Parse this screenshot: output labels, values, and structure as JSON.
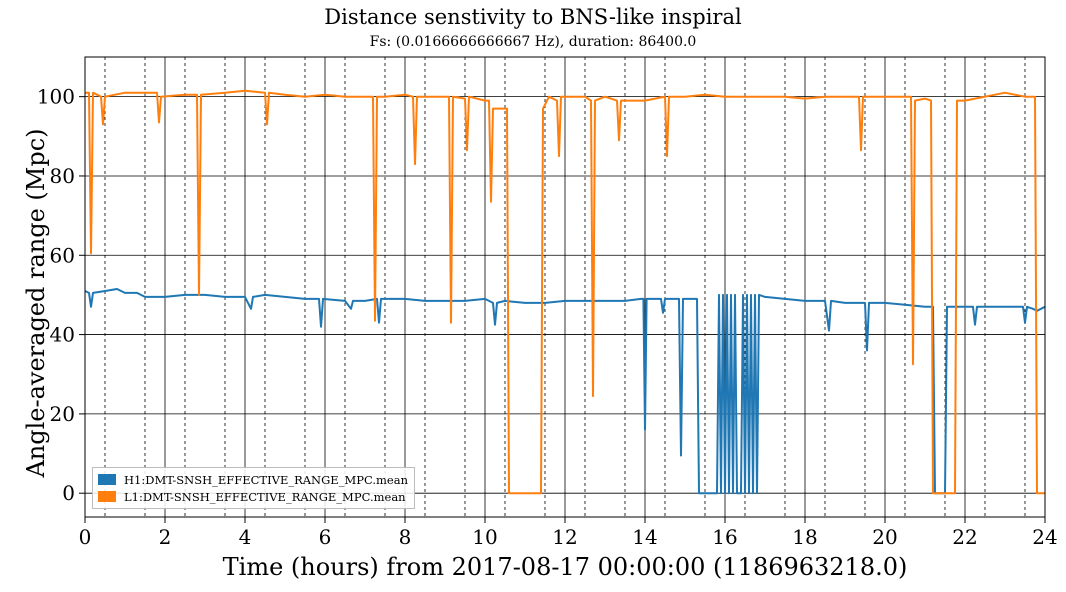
{
  "chart_data": {
    "type": "line",
    "title": "Distance senstivity to BNS-like inspiral",
    "subtitle": "Fs: (0.0166666666667 Hz), duration: 86400.0",
    "xlabel": "Time (hours) from 2017-08-17 00:00:00 (1186963218.0)",
    "ylabel": "Angle-averaged range (Mpc)",
    "xlim": [
      0,
      24
    ],
    "ylim": [
      -6,
      110
    ],
    "x_ticks": [
      0,
      2,
      4,
      6,
      8,
      10,
      12,
      14,
      16,
      18,
      20,
      22,
      24
    ],
    "y_ticks": [
      0,
      20,
      40,
      60,
      80,
      100
    ],
    "grid": "major solid, minor dashed (x every 0.5 h)",
    "legend": "lower-left",
    "series": [
      {
        "name": "H1:DMT-SNSH_EFFECTIVE_RANGE_MPC.mean",
        "color": "#1f77b4",
        "points": [
          [
            0.0,
            51
          ],
          [
            0.1,
            50.5
          ],
          [
            0.15,
            47
          ],
          [
            0.2,
            50.5
          ],
          [
            0.5,
            51
          ],
          [
            0.8,
            51.5
          ],
          [
            1.0,
            50.5
          ],
          [
            1.3,
            50.5
          ],
          [
            1.5,
            49.5
          ],
          [
            2.0,
            49.5
          ],
          [
            2.5,
            50
          ],
          [
            3.0,
            50
          ],
          [
            3.5,
            49.5
          ],
          [
            4.0,
            49.5
          ],
          [
            4.15,
            46.5
          ],
          [
            4.2,
            49.5
          ],
          [
            4.5,
            50
          ],
          [
            5.0,
            49.5
          ],
          [
            5.5,
            49
          ],
          [
            5.85,
            49
          ],
          [
            5.9,
            42
          ],
          [
            5.95,
            49
          ],
          [
            6.5,
            48.5
          ],
          [
            6.65,
            46.5
          ],
          [
            6.7,
            48.5
          ],
          [
            7.0,
            48.5
          ],
          [
            7.3,
            49
          ],
          [
            7.35,
            43
          ],
          [
            7.4,
            49
          ],
          [
            7.5,
            49
          ],
          [
            8.0,
            49
          ],
          [
            8.5,
            48.5
          ],
          [
            9.0,
            48.5
          ],
          [
            9.5,
            48.5
          ],
          [
            10.0,
            49
          ],
          [
            10.2,
            48
          ],
          [
            10.25,
            42.5
          ],
          [
            10.3,
            48
          ],
          [
            10.5,
            48.5
          ],
          [
            11.0,
            48
          ],
          [
            11.5,
            48
          ],
          [
            12.0,
            48.5
          ],
          [
            12.5,
            48.5
          ],
          [
            13.0,
            48.5
          ],
          [
            13.5,
            48.5
          ],
          [
            13.9,
            49
          ],
          [
            13.96,
            49
          ],
          [
            14.0,
            16
          ],
          [
            14.04,
            49
          ],
          [
            14.4,
            49
          ],
          [
            14.45,
            45.5
          ],
          [
            14.5,
            49
          ],
          [
            14.85,
            49
          ],
          [
            14.9,
            9.5
          ],
          [
            14.95,
            49
          ],
          [
            15.3,
            49
          ],
          [
            15.35,
            0
          ],
          [
            15.8,
            0
          ],
          [
            15.85,
            50
          ],
          [
            15.9,
            0
          ],
          [
            15.95,
            50
          ],
          [
            16.0,
            0
          ],
          [
            16.05,
            50
          ],
          [
            16.1,
            0
          ],
          [
            16.15,
            50
          ],
          [
            16.2,
            0
          ],
          [
            16.25,
            50
          ],
          [
            16.3,
            0
          ],
          [
            16.4,
            0
          ],
          [
            16.45,
            50
          ],
          [
            16.5,
            0
          ],
          [
            16.55,
            50
          ],
          [
            16.6,
            0
          ],
          [
            16.65,
            50
          ],
          [
            16.7,
            0
          ],
          [
            16.75,
            50
          ],
          [
            16.8,
            0
          ],
          [
            16.85,
            50
          ],
          [
            17.0,
            49.5
          ],
          [
            17.5,
            49
          ],
          [
            18.0,
            48.5
          ],
          [
            18.5,
            48.5
          ],
          [
            18.6,
            41
          ],
          [
            18.65,
            48.5
          ],
          [
            19.0,
            48
          ],
          [
            19.5,
            48
          ],
          [
            19.55,
            36
          ],
          [
            19.6,
            48
          ],
          [
            20.0,
            48
          ],
          [
            20.5,
            47.5
          ],
          [
            21.0,
            47
          ],
          [
            21.2,
            47
          ],
          [
            21.25,
            0
          ],
          [
            21.5,
            0
          ],
          [
            21.55,
            47
          ],
          [
            22.0,
            47
          ],
          [
            22.2,
            47
          ],
          [
            22.25,
            42.5
          ],
          [
            22.3,
            47
          ],
          [
            23.0,
            47
          ],
          [
            23.45,
            47
          ],
          [
            23.5,
            43
          ],
          [
            23.55,
            47
          ],
          [
            23.7,
            46.5
          ],
          [
            23.8,
            46
          ],
          [
            24.0,
            47
          ]
        ]
      },
      {
        "name": "L1:DMT-SNSH_EFFECTIVE_RANGE_MPC.mean",
        "color": "#ff7f0e",
        "points": [
          [
            0.0,
            101
          ],
          [
            0.1,
            101
          ],
          [
            0.15,
            60.5
          ],
          [
            0.2,
            101
          ],
          [
            0.4,
            100
          ],
          [
            0.45,
            93
          ],
          [
            0.5,
            100
          ],
          [
            1.0,
            101
          ],
          [
            1.5,
            101
          ],
          [
            1.8,
            101
          ],
          [
            1.85,
            93.5
          ],
          [
            1.9,
            100
          ],
          [
            2.5,
            100.5
          ],
          [
            2.8,
            100.5
          ],
          [
            2.85,
            50
          ],
          [
            2.9,
            100.5
          ],
          [
            3.5,
            101
          ],
          [
            4.0,
            101.5
          ],
          [
            4.5,
            101
          ],
          [
            4.55,
            93
          ],
          [
            4.6,
            101
          ],
          [
            5.0,
            100.5
          ],
          [
            5.5,
            100
          ],
          [
            6.0,
            100.5
          ],
          [
            6.5,
            100
          ],
          [
            7.0,
            100
          ],
          [
            7.2,
            100
          ],
          [
            7.25,
            43.5
          ],
          [
            7.3,
            100
          ],
          [
            7.5,
            100
          ],
          [
            8.0,
            100.5
          ],
          [
            8.2,
            100
          ],
          [
            8.25,
            83
          ],
          [
            8.3,
            100
          ],
          [
            8.5,
            100
          ],
          [
            9.0,
            100
          ],
          [
            9.1,
            100
          ],
          [
            9.15,
            43
          ],
          [
            9.2,
            100
          ],
          [
            9.5,
            99.5
          ],
          [
            9.55,
            86.5
          ],
          [
            9.6,
            100
          ],
          [
            10.0,
            99
          ],
          [
            10.1,
            99
          ],
          [
            10.15,
            73.5
          ],
          [
            10.2,
            97
          ],
          [
            10.55,
            97
          ],
          [
            10.6,
            0
          ],
          [
            11.4,
            0
          ],
          [
            11.45,
            97
          ],
          [
            11.6,
            100
          ],
          [
            11.8,
            99
          ],
          [
            11.85,
            85
          ],
          [
            11.9,
            100
          ],
          [
            12.5,
            100
          ],
          [
            12.65,
            99
          ],
          [
            12.7,
            24.5
          ],
          [
            12.75,
            99
          ],
          [
            13.0,
            100
          ],
          [
            13.3,
            99
          ],
          [
            13.35,
            89
          ],
          [
            13.4,
            99
          ],
          [
            14.0,
            99
          ],
          [
            14.5,
            100
          ],
          [
            14.55,
            85
          ],
          [
            14.6,
            100
          ],
          [
            15.0,
            100
          ],
          [
            15.5,
            100.5
          ],
          [
            16.0,
            100
          ],
          [
            16.5,
            100
          ],
          [
            17.0,
            100
          ],
          [
            17.5,
            100
          ],
          [
            18.0,
            99.5
          ],
          [
            18.5,
            100
          ],
          [
            19.0,
            100
          ],
          [
            19.35,
            100
          ],
          [
            19.4,
            86.5
          ],
          [
            19.45,
            100
          ],
          [
            20.0,
            100
          ],
          [
            20.5,
            100
          ],
          [
            20.65,
            100
          ],
          [
            20.7,
            32.5
          ],
          [
            20.75,
            99
          ],
          [
            21.0,
            99.5
          ],
          [
            21.15,
            99
          ],
          [
            21.2,
            0
          ],
          [
            21.75,
            0
          ],
          [
            21.8,
            99
          ],
          [
            22.0,
            99
          ],
          [
            22.5,
            100
          ],
          [
            23.0,
            101
          ],
          [
            23.5,
            100
          ],
          [
            23.75,
            100
          ],
          [
            23.8,
            0
          ],
          [
            24.0,
            0
          ]
        ]
      }
    ]
  }
}
